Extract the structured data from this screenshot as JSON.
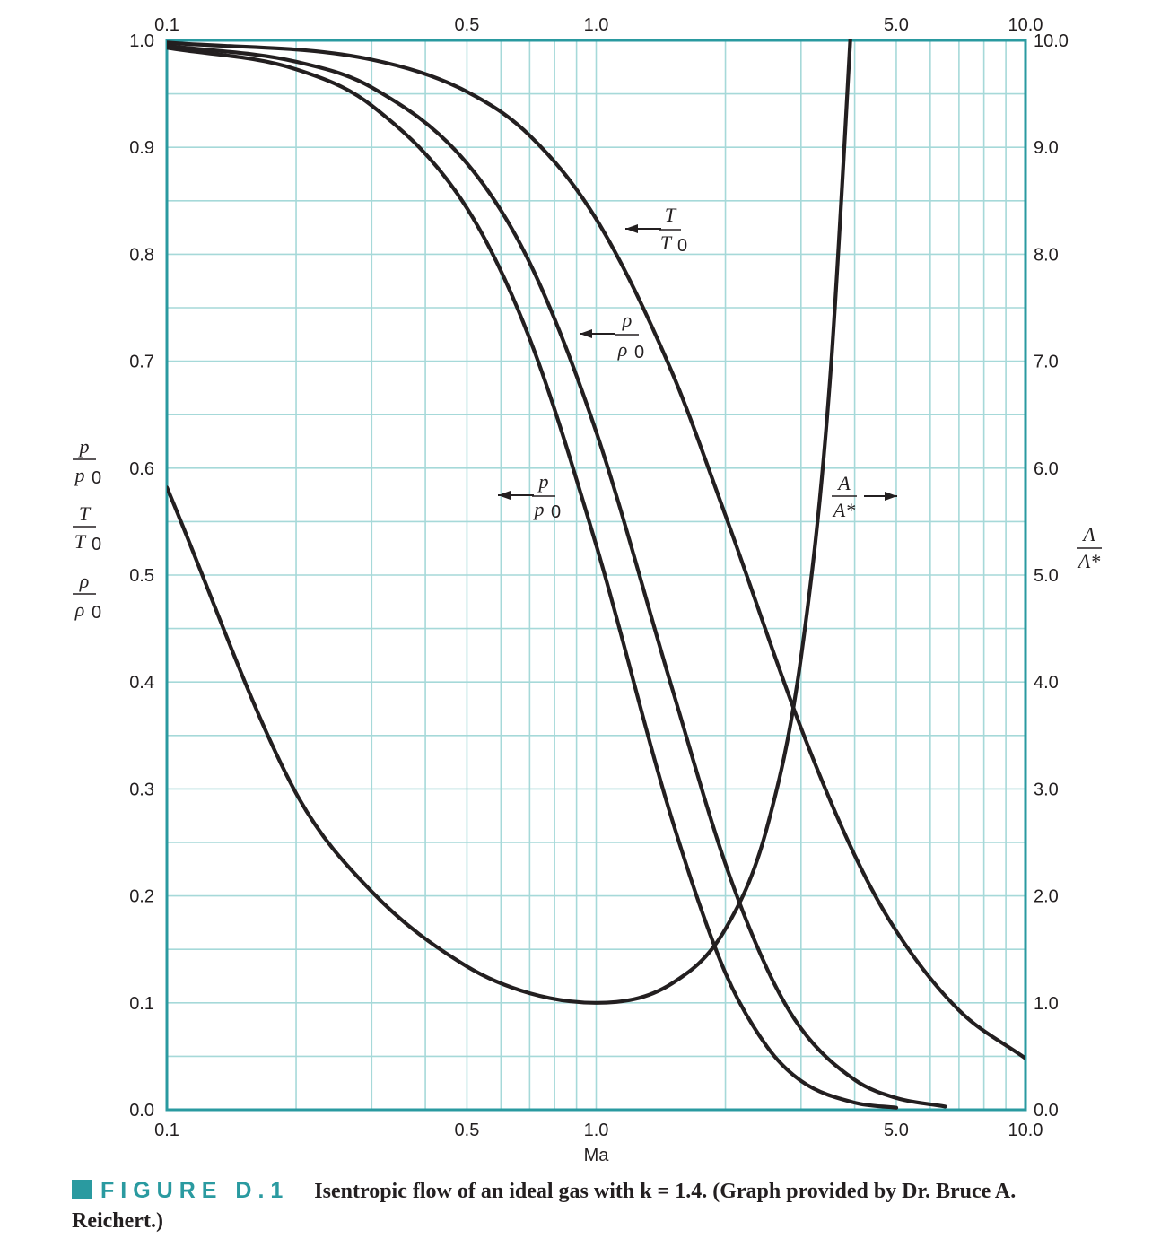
{
  "chart_data": {
    "type": "line",
    "xlabel": "Ma",
    "x_scale": "log",
    "xlim": [
      0.1,
      10.0
    ],
    "ylim_left": [
      0.0,
      1.0
    ],
    "ylim_right": [
      0.0,
      10.0
    ],
    "x_ticks": [
      "0.1",
      "0.5",
      "1.0",
      "5.0",
      "10.0"
    ],
    "y_ticks_left": [
      "0.0",
      "0.1",
      "0.2",
      "0.3",
      "0.4",
      "0.5",
      "0.6",
      "0.7",
      "0.8",
      "0.9",
      "1.0"
    ],
    "y_ticks_right": [
      "0.0",
      "1.0",
      "2.0",
      "3.0",
      "4.0",
      "5.0",
      "6.0",
      "7.0",
      "8.0",
      "9.0",
      "10.0"
    ],
    "grid": true,
    "grid_color": "#a6d9d9",
    "frame_color": "#2a9aa0",
    "k": 1.4,
    "series": [
      {
        "name": "p/p0",
        "axis": "left",
        "x": [
          0.1,
          0.2,
          0.3,
          0.5,
          0.7,
          1.0,
          1.5,
          2.0,
          2.5,
          3.0,
          4.0,
          5.0
        ],
        "y": [
          0.993,
          0.973,
          0.939,
          0.843,
          0.721,
          0.528,
          0.272,
          0.128,
          0.059,
          0.027,
          0.0066,
          0.0019
        ]
      },
      {
        "name": "ρ/ρ0",
        "axis": "left",
        "x": [
          0.1,
          0.2,
          0.3,
          0.5,
          0.7,
          1.0,
          1.5,
          2.0,
          2.5,
          3.0,
          4.0,
          5.0,
          6.5
        ],
        "y": [
          0.995,
          0.98,
          0.956,
          0.885,
          0.792,
          0.634,
          0.395,
          0.23,
          0.132,
          0.076,
          0.028,
          0.011,
          0.003
        ]
      },
      {
        "name": "T/T0",
        "axis": "left",
        "x": [
          0.1,
          0.3,
          0.5,
          0.7,
          1.0,
          1.5,
          2.0,
          3.0,
          4.0,
          5.0,
          7.0,
          10.0
        ],
        "y": [
          0.998,
          0.982,
          0.952,
          0.911,
          0.833,
          0.69,
          0.556,
          0.357,
          0.238,
          0.167,
          0.093,
          0.048
        ]
      },
      {
        "name": "A/A*",
        "axis": "right",
        "x": [
          0.1,
          0.2,
          0.3,
          0.5,
          0.7,
          1.0,
          1.5,
          2.0,
          2.5,
          3.0,
          3.5,
          4.0
        ],
        "y": [
          5.82,
          2.96,
          2.04,
          1.34,
          1.09,
          1.0,
          1.18,
          1.69,
          2.64,
          4.23,
          6.79,
          10.72
        ]
      }
    ],
    "annotations": {
      "T_over_T0": {
        "num": "T",
        "den": "T",
        "den_sub": "0"
      },
      "rho_over_rho0": {
        "num": "ρ",
        "den": "ρ",
        "den_sub": "0"
      },
      "p_over_p0": {
        "num": "p",
        "den": "p",
        "den_sub": "0"
      },
      "A_over_Astar": {
        "num": "A",
        "den": "A*"
      }
    },
    "left_axis_label": [
      {
        "num": "p",
        "den": "p",
        "den_sub": "0"
      },
      {
        "num": "T",
        "den": "T",
        "den_sub": "0"
      },
      {
        "num": "ρ",
        "den": "ρ",
        "den_sub": "0"
      }
    ],
    "right_axis_label": {
      "num": "A",
      "den": "A*"
    }
  },
  "caption": {
    "figure_label": "FIGURE D.1",
    "text": "Isentropic flow of an ideal gas with k = 1.4. (Graph provided by Dr. Bruce A. Reichert.)"
  }
}
